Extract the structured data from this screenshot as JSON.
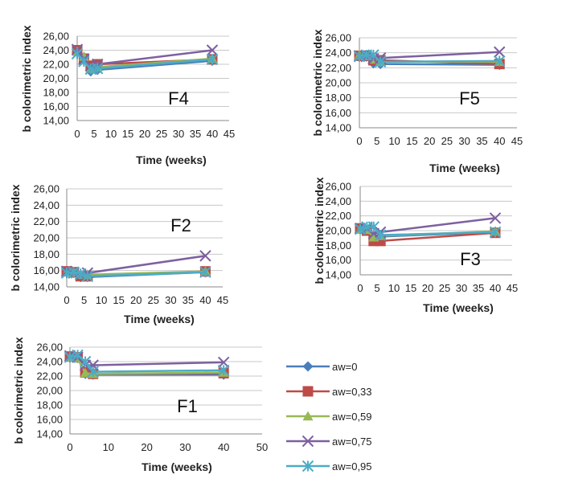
{
  "series_styles": [
    {
      "name": "aw=0",
      "color": "#4a7ebb",
      "marker": "diamond"
    },
    {
      "name": "aw=0,33",
      "color": "#be4b48",
      "marker": "square"
    },
    {
      "name": "aw=0,59",
      "color": "#98b954",
      "marker": "triangle"
    },
    {
      "name": "aw=0,75",
      "color": "#7d60a0",
      "marker": "x"
    },
    {
      "name": "aw=0,95",
      "color": "#4bacc6",
      "marker": "asterisk"
    }
  ],
  "chart_data": [
    {
      "panel": "F4",
      "type": "line",
      "label": "F4",
      "xlabel": "Time (weeks)",
      "ylabel": "b colorimetric index",
      "xlim": [
        0,
        45
      ],
      "ylim": [
        14,
        26
      ],
      "grid": true,
      "xticks": [
        0,
        5,
        10,
        15,
        20,
        25,
        30,
        35,
        40,
        45
      ],
      "yticks": [
        "14,00",
        "16,00",
        "18,00",
        "20,00",
        "22,00",
        "24,00",
        "26,00"
      ],
      "series": [
        {
          "name": "aw=0",
          "x": [
            0,
            2,
            4,
            6,
            40
          ],
          "y": [
            23.8,
            23.0,
            21.0,
            21.2,
            22.5
          ]
        },
        {
          "name": "aw=0,33",
          "x": [
            0,
            2,
            4,
            6,
            40
          ],
          "y": [
            24.0,
            22.8,
            21.8,
            22.0,
            22.7
          ]
        },
        {
          "name": "aw=0,59",
          "x": [
            0,
            2,
            4,
            6,
            40
          ],
          "y": [
            23.8,
            23.1,
            21.4,
            21.6,
            22.8
          ]
        },
        {
          "name": "aw=0,75",
          "x": [
            0,
            2,
            4,
            6,
            40
          ],
          "y": [
            24.1,
            22.7,
            21.8,
            22.0,
            24.0
          ]
        },
        {
          "name": "aw=0,95",
          "x": [
            0,
            2,
            4,
            6,
            40
          ],
          "y": [
            23.5,
            22.4,
            21.3,
            21.4,
            22.7
          ]
        }
      ]
    },
    {
      "panel": "F5",
      "type": "line",
      "label": "F5",
      "xlabel": "Time (weeks)",
      "ylabel": "b colorimetric index",
      "xlim": [
        0,
        45
      ],
      "ylim": [
        14,
        26
      ],
      "grid": true,
      "xticks": [
        0,
        5,
        10,
        15,
        20,
        25,
        30,
        35,
        40,
        45
      ],
      "yticks": [
        "14,00",
        "16,00",
        "18,00",
        "20,00",
        "22,00",
        "24,00",
        "26,00"
      ],
      "series": [
        {
          "name": "aw=0",
          "x": [
            0,
            2,
            4,
            6,
            40
          ],
          "y": [
            23.6,
            23.5,
            22.6,
            22.5,
            22.4
          ]
        },
        {
          "name": "aw=0,33",
          "x": [
            0,
            2,
            4,
            6,
            40
          ],
          "y": [
            23.6,
            23.6,
            23.0,
            23.0,
            22.5
          ]
        },
        {
          "name": "aw=0,59",
          "x": [
            0,
            2,
            4,
            6,
            40
          ],
          "y": [
            23.7,
            23.6,
            23.1,
            22.8,
            22.8
          ]
        },
        {
          "name": "aw=0,75",
          "x": [
            0,
            2,
            4,
            6,
            40
          ],
          "y": [
            23.6,
            23.5,
            23.2,
            23.3,
            24.1
          ]
        },
        {
          "name": "aw=0,95",
          "x": [
            0,
            2,
            4,
            6,
            40
          ],
          "y": [
            23.5,
            23.7,
            23.7,
            22.8,
            22.9
          ]
        }
      ]
    },
    {
      "panel": "F2",
      "type": "line",
      "label": "F2",
      "xlabel": "Time (weeks)",
      "ylabel": "b colorimetric index",
      "xlim": [
        0,
        45
      ],
      "ylim": [
        14,
        26
      ],
      "grid": true,
      "xticks": [
        0,
        5,
        10,
        15,
        20,
        25,
        30,
        35,
        40,
        45
      ],
      "yticks": [
        "14,00",
        "16,00",
        "18,00",
        "20,00",
        "22,00",
        "24,00",
        "26,00"
      ],
      "series": [
        {
          "name": "aw=0",
          "x": [
            0,
            2,
            4,
            6,
            40
          ],
          "y": [
            15.8,
            15.7,
            15.2,
            15.2,
            15.8
          ]
        },
        {
          "name": "aw=0,33",
          "x": [
            0,
            2,
            4,
            6,
            40
          ],
          "y": [
            15.9,
            15.8,
            15.3,
            15.3,
            15.9
          ]
        },
        {
          "name": "aw=0,59",
          "x": [
            0,
            2,
            4,
            6,
            40
          ],
          "y": [
            15.8,
            15.8,
            15.5,
            15.5,
            15.9
          ]
        },
        {
          "name": "aw=0,75",
          "x": [
            0,
            2,
            4,
            6,
            40
          ],
          "y": [
            15.9,
            15.7,
            15.5,
            15.7,
            17.8
          ]
        },
        {
          "name": "aw=0,95",
          "x": [
            0,
            2,
            4,
            6,
            40
          ],
          "y": [
            15.7,
            15.8,
            15.6,
            15.3,
            15.8
          ]
        }
      ]
    },
    {
      "panel": "F3",
      "type": "line",
      "label": "F3",
      "xlabel": "Time (weeks)",
      "ylabel": "b colorimetric index",
      "xlim": [
        0,
        45
      ],
      "ylim": [
        14,
        26
      ],
      "grid": true,
      "xticks": [
        0,
        5,
        10,
        15,
        20,
        25,
        30,
        35,
        40,
        45
      ],
      "yticks": [
        "14,00",
        "16,00",
        "18,00",
        "20,00",
        "22,00",
        "24,00",
        "26,00"
      ],
      "series": [
        {
          "name": "aw=0",
          "x": [
            0,
            2,
            4,
            6,
            40
          ],
          "y": [
            20.2,
            20.0,
            19.2,
            19.2,
            19.8
          ]
        },
        {
          "name": "aw=0,33",
          "x": [
            0,
            2,
            4,
            6,
            40
          ],
          "y": [
            20.3,
            20.0,
            18.6,
            18.6,
            19.7
          ]
        },
        {
          "name": "aw=0,59",
          "x": [
            0,
            2,
            4,
            6,
            40
          ],
          "y": [
            20.2,
            20.1,
            19.1,
            19.3,
            19.9
          ]
        },
        {
          "name": "aw=0,75",
          "x": [
            0,
            2,
            4,
            6,
            40
          ],
          "y": [
            20.3,
            20.3,
            19.6,
            19.8,
            21.7
          ]
        },
        {
          "name": "aw=0,95",
          "x": [
            0,
            2,
            4,
            6,
            40
          ],
          "y": [
            20.2,
            20.5,
            20.5,
            19.4,
            19.8
          ]
        }
      ]
    },
    {
      "panel": "F1",
      "type": "line",
      "label": "F1",
      "xlabel": "Time (weeks)",
      "ylabel": "b colorimetric index",
      "xlim": [
        0,
        50
      ],
      "ylim": [
        14,
        26
      ],
      "grid": true,
      "xticks": [
        0,
        10,
        20,
        30,
        40,
        50
      ],
      "yticks": [
        "14,00",
        "16,00",
        "18,00",
        "20,00",
        "22,00",
        "24,00",
        "26,00"
      ],
      "series": [
        {
          "name": "aw=0",
          "x": [
            0,
            2,
            4,
            6,
            40
          ],
          "y": [
            24.6,
            24.5,
            22.3,
            22.2,
            22.2
          ]
        },
        {
          "name": "aw=0,33",
          "x": [
            0,
            2,
            4,
            6,
            40
          ],
          "y": [
            24.7,
            24.6,
            22.5,
            22.3,
            22.4
          ]
        },
        {
          "name": "aw=0,59",
          "x": [
            0,
            2,
            4,
            6,
            40
          ],
          "y": [
            24.6,
            24.5,
            22.4,
            22.3,
            22.5
          ]
        },
        {
          "name": "aw=0,75",
          "x": [
            0,
            2,
            4,
            6,
            40
          ],
          "y": [
            24.8,
            24.6,
            23.5,
            23.5,
            23.9
          ]
        },
        {
          "name": "aw=0,95",
          "x": [
            0,
            2,
            4,
            6,
            40
          ],
          "y": [
            24.6,
            24.9,
            24.0,
            22.6,
            22.8
          ]
        }
      ]
    }
  ]
}
